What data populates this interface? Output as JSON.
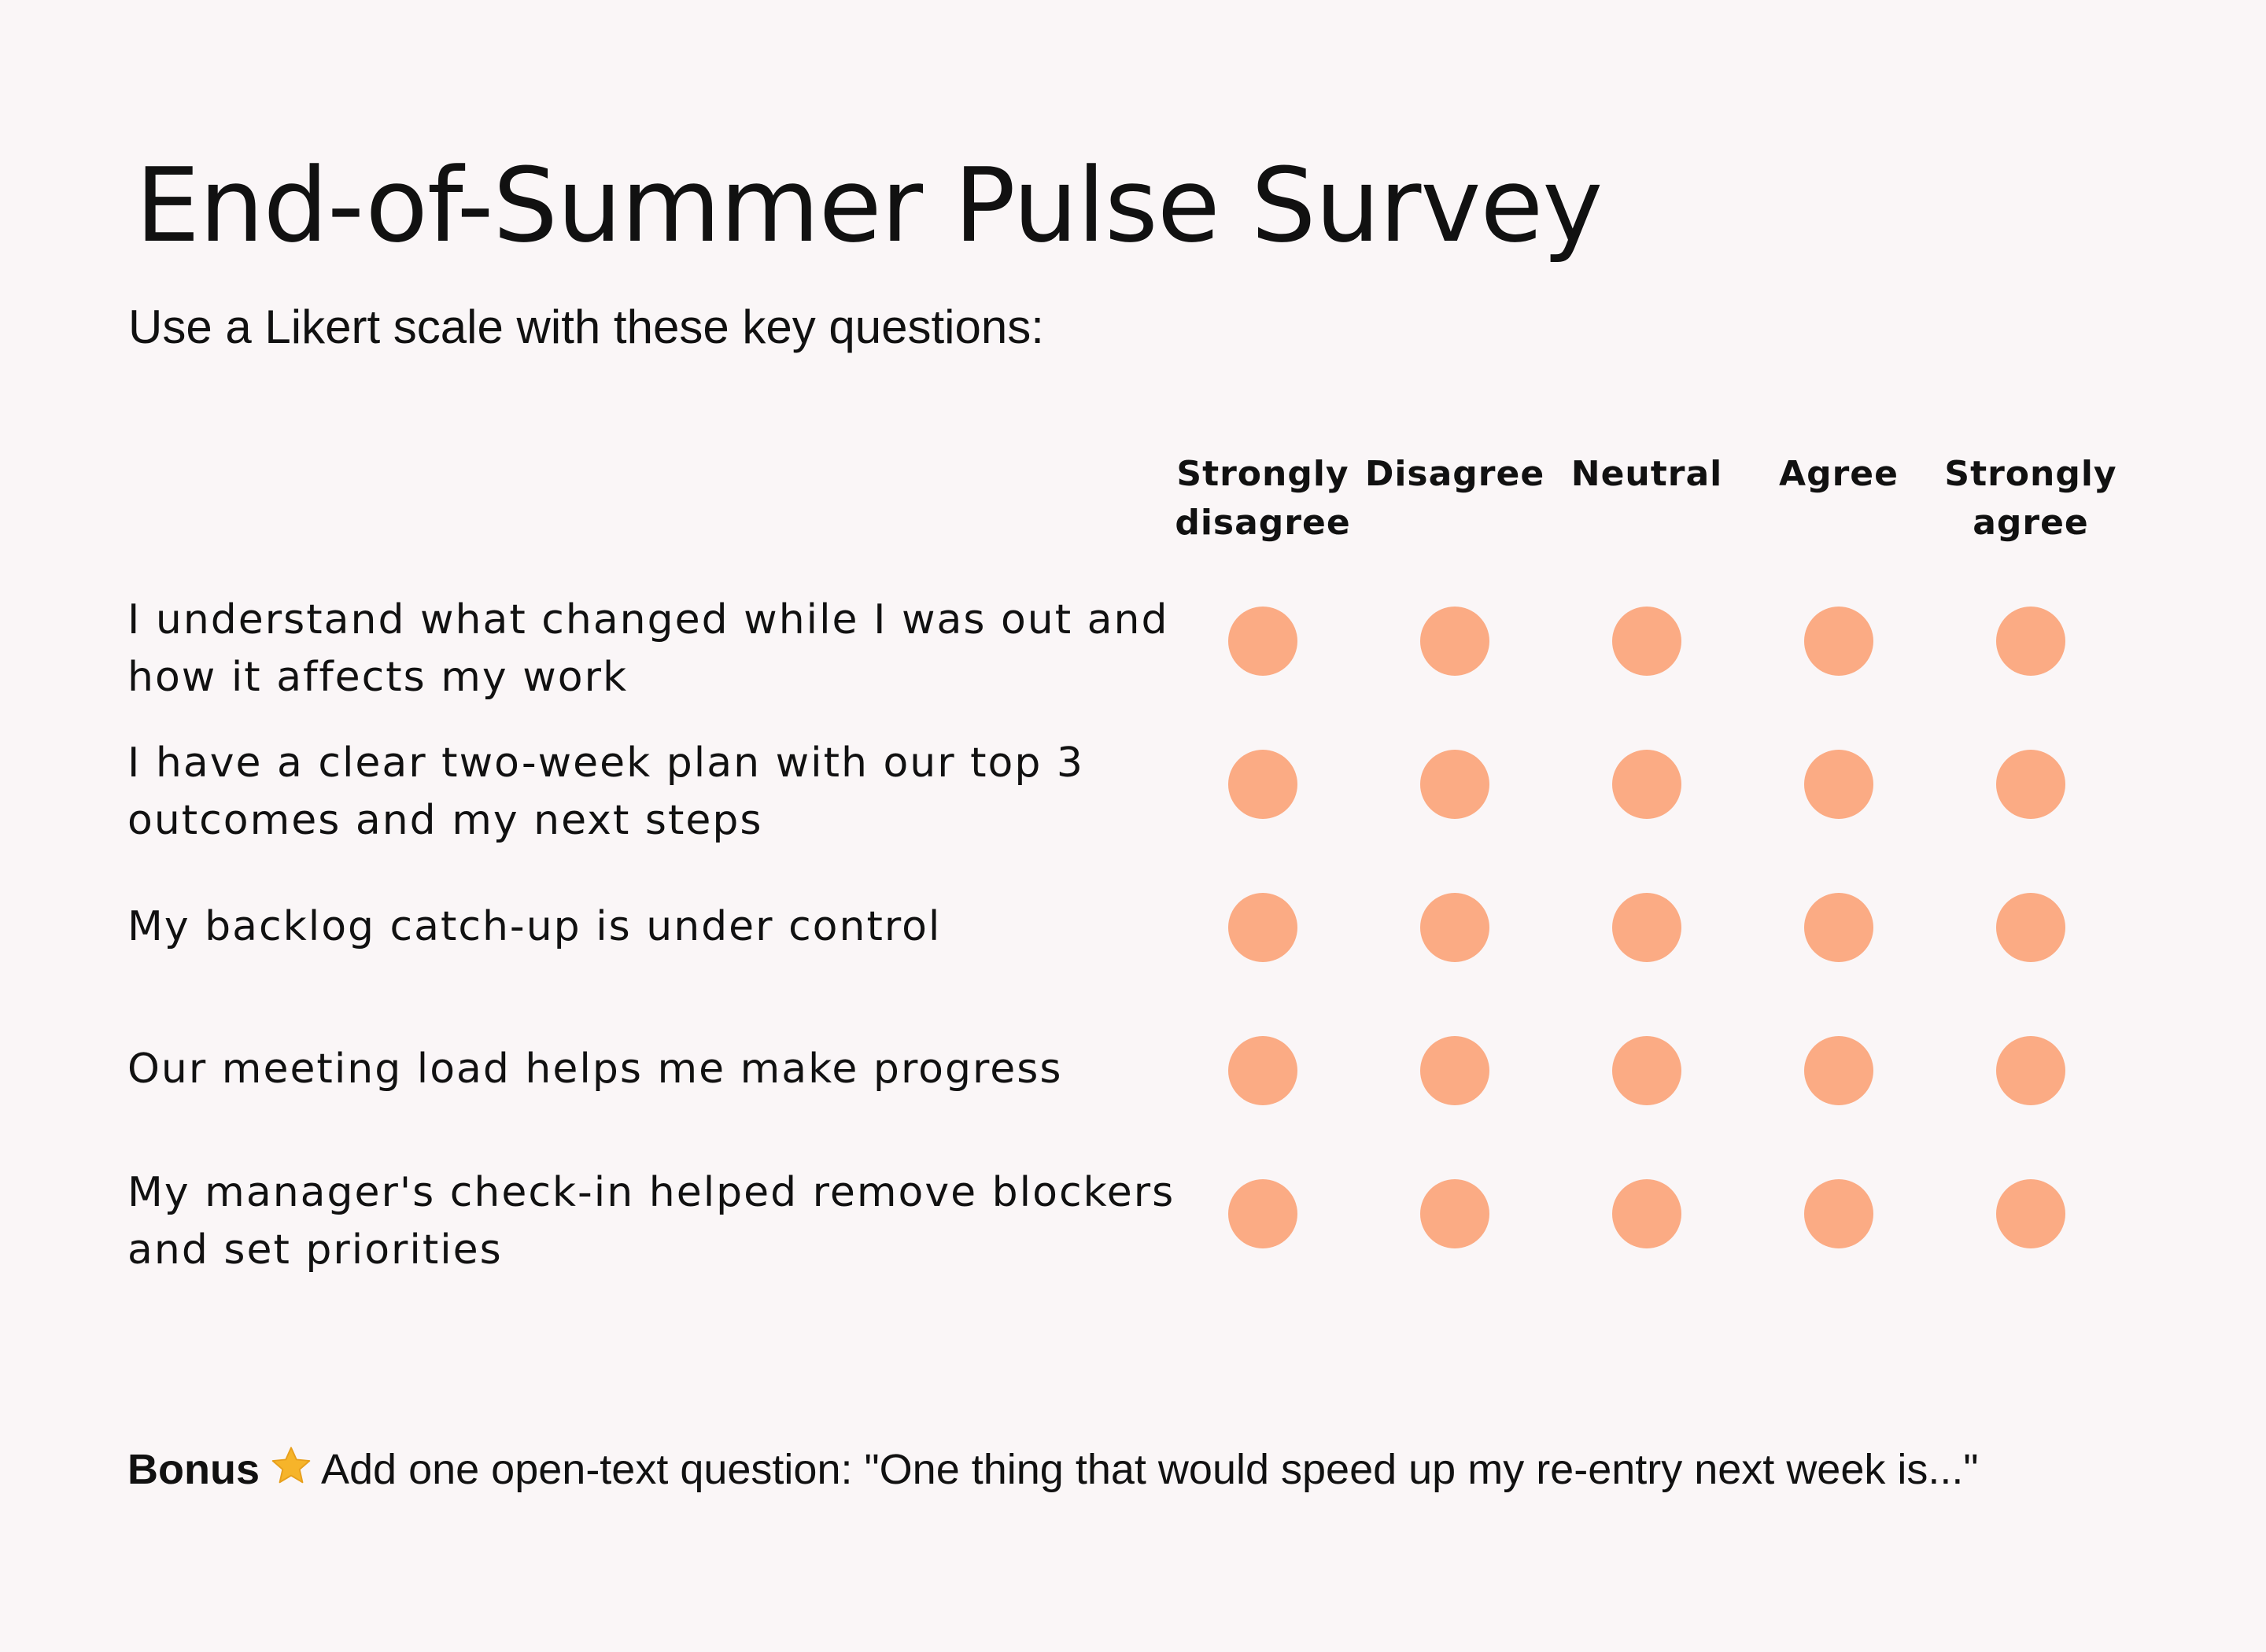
{
  "title": "End-of-Summer Pulse Survey",
  "subtitle": "Use a Likert scale with these key questions:",
  "scale_options": [
    {
      "line1": "Strongly",
      "line2": "disagree"
    },
    {
      "line1": "Disagree",
      "line2": ""
    },
    {
      "line1": "Neutral",
      "line2": ""
    },
    {
      "line1": "Agree",
      "line2": ""
    },
    {
      "line1": "Strongly",
      "line2": "agree"
    }
  ],
  "questions": [
    {
      "line1": "I understand what changed while I was out and",
      "line2": "how it affects my work"
    },
    {
      "line1": "I have a clear two-week plan with our top 3",
      "line2": "outcomes and my next steps"
    },
    {
      "line1": "My backlog catch-up is under control",
      "line2": ""
    },
    {
      "line1": "Our meeting load helps me make progress",
      "line2": ""
    },
    {
      "line1": "My manager's check-in helped remove blockers",
      "line2": "and set priorities"
    }
  ],
  "bonus": {
    "label": "Bonus",
    "icon": "star-icon",
    "text": "Add one open-text question: \"One thing that would speed up my re-entry next week is...\""
  },
  "colors": {
    "background": "#faf6f7",
    "dot": "#fbab84",
    "star": "#f6b42a",
    "text": "#111111"
  }
}
